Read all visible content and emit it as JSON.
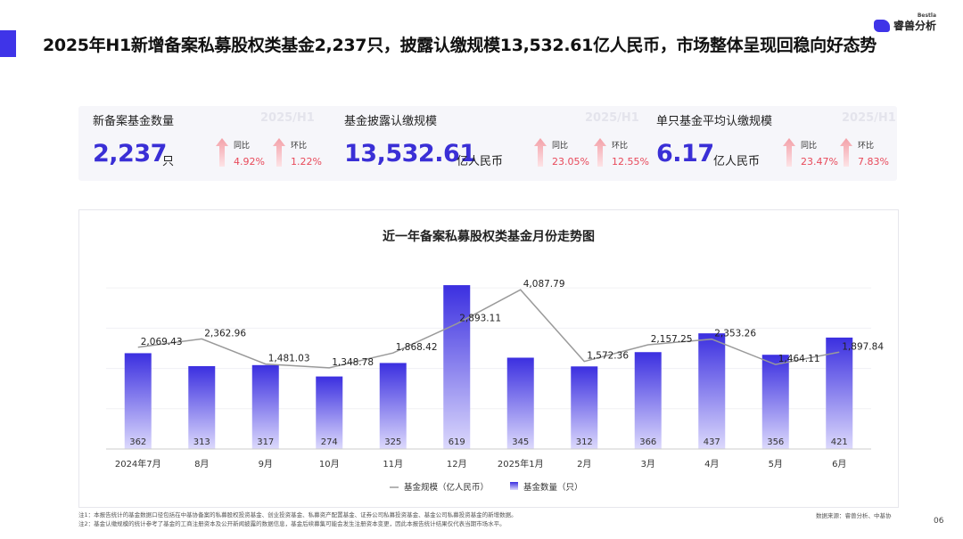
{
  "header": {
    "headline": "2025年H1新增备案私募股权类基金2,237只，披露认缴规模13,532.61亿人民币，市场整体呈现回稳向好态势",
    "brand_small": "Bestla",
    "brand_name": "睿兽分析"
  },
  "kpis": [
    {
      "title": "新备案基金数量",
      "period": "2025/H1",
      "value": "2,237",
      "unit": "只",
      "yoy_label": "同比",
      "yoy_value": "4.92%",
      "mom_label": "环比",
      "mom_value": "1.22%"
    },
    {
      "title": "基金披露认缴规模",
      "period": "2025/H1",
      "value": "13,532.61",
      "unit": "亿人民币",
      "yoy_label": "同比",
      "yoy_value": "23.05%",
      "mom_label": "环比",
      "mom_value": "12.55%"
    },
    {
      "title": "单只基金平均认缴规模",
      "period": "2025/H1",
      "value": "6.17",
      "unit": "亿人民币",
      "yoy_label": "同比",
      "yoy_value": "23.47%",
      "mom_label": "环比",
      "mom_value": "7.83%"
    }
  ],
  "colors": {
    "accent": "#3f34e8",
    "bar_top": "#3b2fe0",
    "bar_bottom": "#d8d5fb",
    "line": "#9a9a9a",
    "up": "#e8495a"
  },
  "chart_data": {
    "type": "bar",
    "title": "近一年备案私募股权类基金月份走势图",
    "categories": [
      "2024年7月",
      "8月",
      "9月",
      "10月",
      "11月",
      "12月",
      "2025年1月",
      "2月",
      "3月",
      "4月",
      "5月",
      "6月"
    ],
    "series": [
      {
        "name": "基金数量（只）",
        "type": "bar",
        "axis": "left",
        "values": [
          362,
          313,
          317,
          274,
          325,
          619,
          345,
          312,
          366,
          437,
          356,
          421
        ],
        "labels": [
          "362",
          "313",
          "317",
          "274",
          "325",
          "619",
          "345",
          "312",
          "366",
          "437",
          "356",
          "421"
        ]
      },
      {
        "name": "基金规模（亿人民币）",
        "type": "line",
        "axis": "right",
        "values": [
          2069.43,
          2362.96,
          1481.03,
          1348.78,
          1868.42,
          2893.11,
          4087.79,
          1572.36,
          2157.25,
          2353.26,
          1464.11,
          1897.84
        ],
        "labels": [
          "2,069.43",
          "2,362.96",
          "1,481.03",
          "1,348.78",
          "1,868.42",
          "2,893.11",
          "4,087.79",
          "1,572.36",
          "2,157.25",
          "2,353.26",
          "1,464.11",
          "1,897.84"
        ]
      }
    ],
    "ylim_left": [
      0,
      700
    ],
    "ylim_right": [
      -1500,
      5000
    ],
    "grid": true,
    "legend": "bottom-center",
    "legend_entries": [
      "基金规模（亿人民币）",
      "基金数量（只）"
    ]
  },
  "footer": {
    "note1": "注1：本报告统计的基金数据口径包括在中基协备案的私募股权投资基金、创业投资基金、私募资产配置基金、证券公司私募投资基金、基金公司私募投资基金的新增数据。",
    "note2": "注2：基金认缴规模的统计参考了基金的工商注册资本及公开新闻披露的数据信息，基金后续募集可能会发生注册资本变更，因此本报告统计结果仅代表当期市场水平。",
    "source": "数据来源：睿兽分析、中基协",
    "page": "06"
  }
}
